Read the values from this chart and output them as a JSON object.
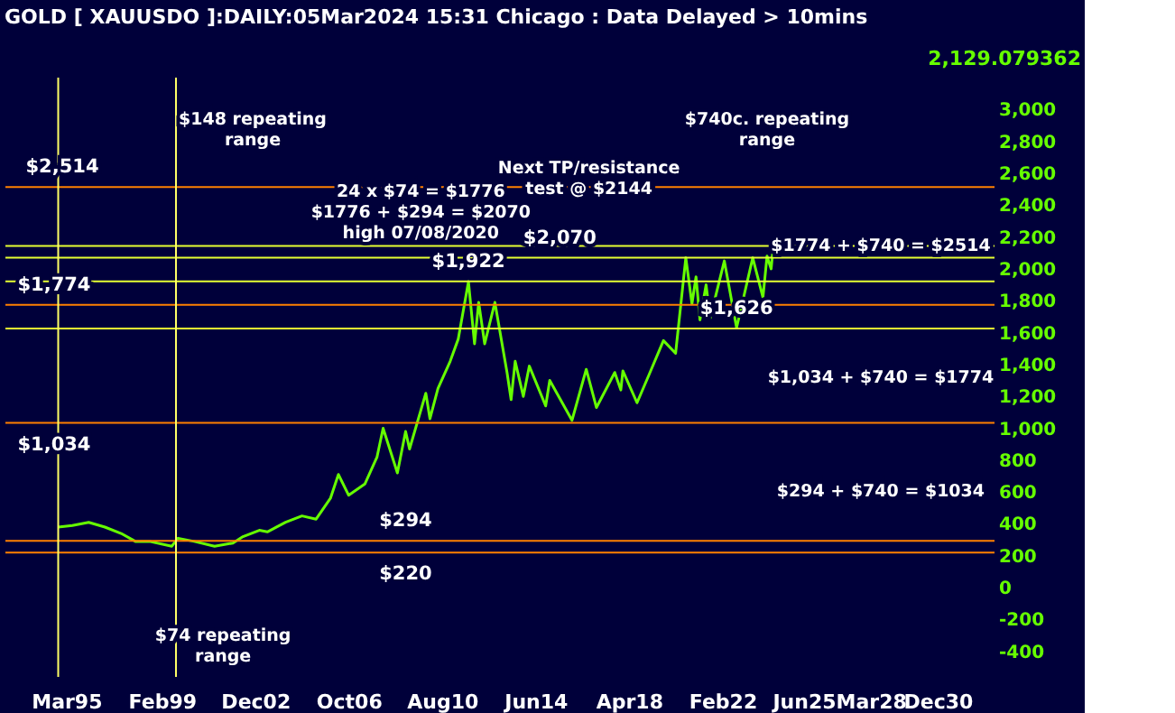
{
  "chart_data": {
    "type": "line",
    "title": "GOLD [ XAUUSDO ]:DAILY:05Mar2024 15:31 Chicago : Data Delayed > 10mins",
    "x": [
      "1994-11",
      "1995-06",
      "1996-02",
      "1996-10",
      "1997-06",
      "1998-01",
      "1998-08",
      "1999-07",
      "1999-10",
      "2000-06",
      "2001-04",
      "2002-01",
      "2002-06",
      "2003-02",
      "2003-06",
      "2004-03",
      "2004-11",
      "2005-06",
      "2006-01",
      "2006-05",
      "2006-10",
      "2007-06",
      "2007-12",
      "2008-03",
      "2008-10",
      "2009-02",
      "2009-04",
      "2009-12",
      "2010-02",
      "2010-06",
      "2010-12",
      "2011-04",
      "2011-09",
      "2011-12",
      "2012-02",
      "2012-05",
      "2012-10",
      "2013-04",
      "2013-06",
      "2013-08",
      "2013-12",
      "2014-03",
      "2014-11",
      "2015-01",
      "2015-12",
      "2016-07",
      "2016-12",
      "2017-09",
      "2017-12",
      "2018-01",
      "2018-08",
      "2019-02",
      "2019-09",
      "2020-03",
      "2020-08",
      "2020-11",
      "2021-01",
      "2021-03",
      "2021-06",
      "2021-08",
      "2022-03",
      "2022-09",
      "2023-05",
      "2023-10",
      "2023-12",
      "2024-02",
      "2024-03"
    ],
    "series": [
      {
        "color": "#66ff00",
        "values": [
          380,
          390,
          410,
          380,
          340,
          290,
          290,
          260,
          310,
          290,
          260,
          280,
          320,
          360,
          350,
          410,
          450,
          430,
          560,
          710,
          580,
          650,
          820,
          1000,
          720,
          980,
          870,
          1220,
          1060,
          1250,
          1420,
          1560,
          1920,
          1530,
          1790,
          1530,
          1790,
          1350,
          1180,
          1420,
          1200,
          1390,
          1140,
          1300,
          1050,
          1370,
          1130,
          1350,
          1240,
          1360,
          1160,
          1340,
          1550,
          1470,
          2070,
          1780,
          1950,
          1680,
          1900,
          1690,
          2050,
          1630,
          2070,
          1820,
          2080,
          2000,
          2130
        ]
      }
    ],
    "xlim": [
      "1992-09",
      "2033-04"
    ],
    "xticks": [
      {
        "value": "1995-03",
        "label": "Mar95"
      },
      {
        "value": "1999-02",
        "label": "Feb99"
      },
      {
        "value": "2002-12",
        "label": "Dec02"
      },
      {
        "value": "2006-10",
        "label": "Oct06"
      },
      {
        "value": "2010-08",
        "label": "Aug10"
      },
      {
        "value": "2014-06",
        "label": "Jun14"
      },
      {
        "value": "2018-04",
        "label": "Apr18"
      },
      {
        "value": "2022-02",
        "label": "Feb22"
      },
      {
        "value": "2025-06",
        "label": "Jun25"
      },
      {
        "value": "2028-03",
        "label": "Mar28"
      },
      {
        "value": "2030-12",
        "label": "Dec30"
      }
    ],
    "ylim": [
      -560,
      3200
    ],
    "yticks": [
      -400,
      -200,
      0,
      200,
      400,
      600,
      800,
      {
        "value": 1000,
        "label": "1,000"
      },
      {
        "value": 1200,
        "label": "1,200"
      },
      {
        "value": 1400,
        "label": "1,400"
      },
      {
        "value": 1600,
        "label": "1,600"
      },
      {
        "value": 1800,
        "label": "1,800"
      },
      {
        "value": 2000,
        "label": "2,000"
      },
      {
        "value": 2200,
        "label": "2,200"
      },
      {
        "value": 2400,
        "label": "2,400"
      },
      {
        "value": 2600,
        "label": "2,600"
      },
      {
        "value": 2800,
        "label": "2,800"
      },
      {
        "value": 3000,
        "label": "3,000"
      }
    ],
    "grid": false,
    "ref_lines": [
      {
        "axis": "y",
        "value": 2514,
        "color": "#ff8000"
      },
      {
        "axis": "y",
        "value": 1774,
        "color": "#ff8000"
      },
      {
        "axis": "y",
        "value": 1034,
        "color": "#ff8000"
      },
      {
        "axis": "y",
        "value": 294,
        "color": "#ff8000"
      },
      {
        "axis": "y",
        "value": 220,
        "color": "#ff8000"
      },
      {
        "axis": "y",
        "value": 2144,
        "color": "#e6ff33"
      },
      {
        "axis": "y",
        "value": 2070,
        "color": "#e6ff33"
      },
      {
        "axis": "y",
        "value": 1922,
        "color": "#e6ff33"
      },
      {
        "axis": "y",
        "value": 1626,
        "color": "#e6ff33"
      },
      {
        "axis": "x",
        "value": "1994-11",
        "color": "#ffff66"
      },
      {
        "axis": "x",
        "value": "1999-09",
        "color": "#ffff66"
      }
    ],
    "annotations": [
      "2,129.079362",
      "$148 repeating\nrange",
      "24 x $74 = $1776\n$1776 + $294 = $2070\nhigh 07/08/2020",
      "Next TP/resistance\ntest @ $2144",
      "$740c. repeating\nrange",
      "$1774 + $740 = $2514",
      "$1,034 + $740 = $1774",
      "$294 + $740 = $1034",
      "$74 repeating\nrange",
      {
        "text": "$1,922",
        "x": "2011-09",
        "y": 1922
      },
      {
        "text": "$2,070",
        "x": "2015-06",
        "y": 2070
      },
      {
        "text": "$1,626",
        "x": "2022-09",
        "y": 1626
      },
      {
        "text": "$294",
        "x": "2009-02",
        "y": 294
      },
      {
        "text": "$220",
        "x": "2009-02",
        "y": 220
      },
      {
        "text": "$2,514",
        "x": "1995-01",
        "y": 2514
      },
      {
        "text": "$1,774",
        "x": "1994-09",
        "y": 1774
      },
      {
        "text": "$1,034",
        "x": "1994-09",
        "y": 1034
      }
    ]
  }
}
